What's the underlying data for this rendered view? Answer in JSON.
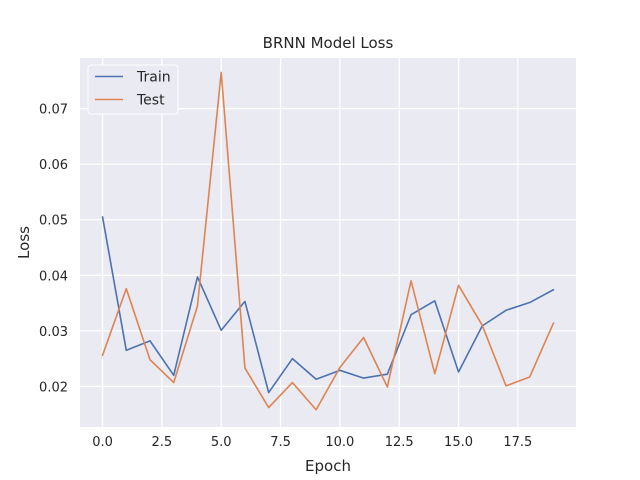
{
  "chart_data": {
    "type": "line",
    "title": "BRNN Model  Loss",
    "xlabel": "Epoch",
    "ylabel": "Loss",
    "x": [
      0,
      1,
      2,
      3,
      4,
      5,
      6,
      7,
      8,
      9,
      10,
      11,
      12,
      13,
      14,
      15,
      16,
      17,
      18,
      19
    ],
    "xlim": [
      -0.95,
      19.95
    ],
    "ylim": [
      0.0127,
      0.0791
    ],
    "xticks": [
      0.0,
      2.5,
      5.0,
      7.5,
      10.0,
      12.5,
      15.0,
      17.5
    ],
    "xtick_labels": [
      "0.0",
      "2.5",
      "5.0",
      "7.5",
      "10.0",
      "12.5",
      "15.0",
      "17.5"
    ],
    "yticks": [
      0.02,
      0.03,
      0.04,
      0.05,
      0.06,
      0.07
    ],
    "ytick_labels": [
      "0.02",
      "0.03",
      "0.04",
      "0.05",
      "0.06",
      "0.07"
    ],
    "grid": true,
    "legend_position": "top-left",
    "series": [
      {
        "name": "Train",
        "color": "#4c72b0",
        "values": [
          0.0505,
          0.0265,
          0.0282,
          0.022,
          0.0397,
          0.0301,
          0.0353,
          0.0189,
          0.025,
          0.0213,
          0.0229,
          0.0215,
          0.0222,
          0.0329,
          0.0354,
          0.0226,
          0.0309,
          0.0337,
          0.0351,
          0.0374
        ]
      },
      {
        "name": "Test",
        "color": "#dd8452",
        "values": [
          0.0256,
          0.0376,
          0.0248,
          0.0207,
          0.0345,
          0.0765,
          0.0233,
          0.0162,
          0.0207,
          0.0158,
          0.0234,
          0.0288,
          0.0199,
          0.039,
          0.0223,
          0.0382,
          0.031,
          0.0201,
          0.0217,
          0.0314
        ]
      }
    ]
  }
}
